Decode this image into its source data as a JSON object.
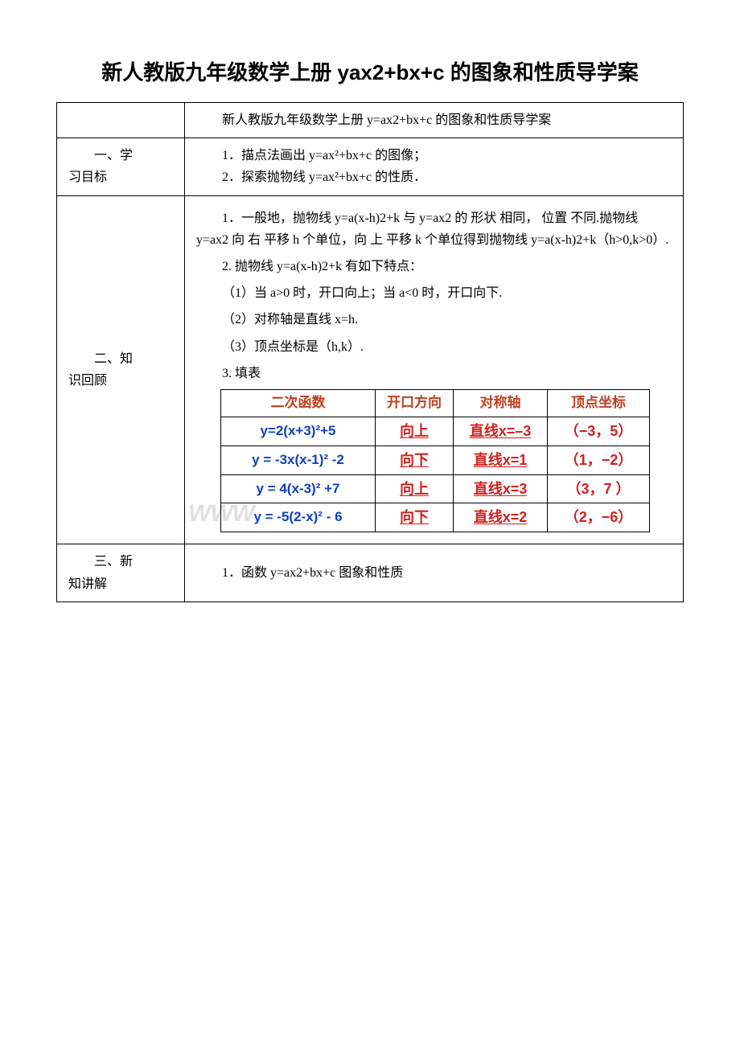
{
  "title": "新人教版九年级数学上册 yax2+bx+c 的图象和性质导学案",
  "row0": {
    "text": "新人教版九年级数学上册 y=ax2+bx+c 的图象和性质导学案"
  },
  "row1": {
    "heading1": "一、学",
    "heading2": "习目标",
    "line1": "1．描点法画出 y=ax²+bx+c 的图像；",
    "line2": "2．探索抛物线 y=ax²+bx+c 的性质．"
  },
  "row2": {
    "heading1": "二、知",
    "heading2": "识回顾",
    "p1": "1．一般地，抛物线 y=a(x-h)2+k 与 y=ax2 的 形状 相同， 位置 不同.抛物线 y=ax2 向 右  平移 h 个单位，向 上 平移 k 个单位得到抛物线 y=a(x-h)2+k（h>0,k>0）.",
    "p2": "2. 抛物线 y=a(x-h)2+k 有如下特点：",
    "p3": "（1）当 a>0 时，开口向上；当 a<0 时，开口向下.",
    "p4": "（2）对称轴是直线 x=h.",
    "p5": "（3）顶点坐标是（h,k）.",
    "p6": "3. 填表",
    "watermark": "WWW",
    "table": {
      "headers": {
        "c1": "二次函数",
        "c2": "开口方向",
        "c3": "对称轴",
        "c4": "顶点坐标"
      },
      "rows": [
        {
          "func": "y=2(x+3)²+5",
          "dir": "向上",
          "axis": "直线x=–3",
          "vert": "（−3，5）"
        },
        {
          "func": "y = -3x(x-1)² -2",
          "dir": "向下",
          "axis": "直线x=1",
          "vert": "（1，−2）"
        },
        {
          "func": "y = 4(x-3)² +7",
          "dir": "向上",
          "axis": "直线x=3",
          "vert": "（3，7 ）"
        },
        {
          "func": "y = -5(2-x)² - 6",
          "dir": "向下",
          "axis": "直线x=2",
          "vert": "（2，−6）"
        }
      ],
      "colors": {
        "header_color": "#c04020",
        "func_color": "#1040c0",
        "answer_color": "#d02020",
        "border_color": "#000000"
      }
    }
  },
  "row3": {
    "heading1": "三、新",
    "heading2": "知讲解",
    "text": "1．函数 y=ax2+bx+c 图象和性质"
  }
}
